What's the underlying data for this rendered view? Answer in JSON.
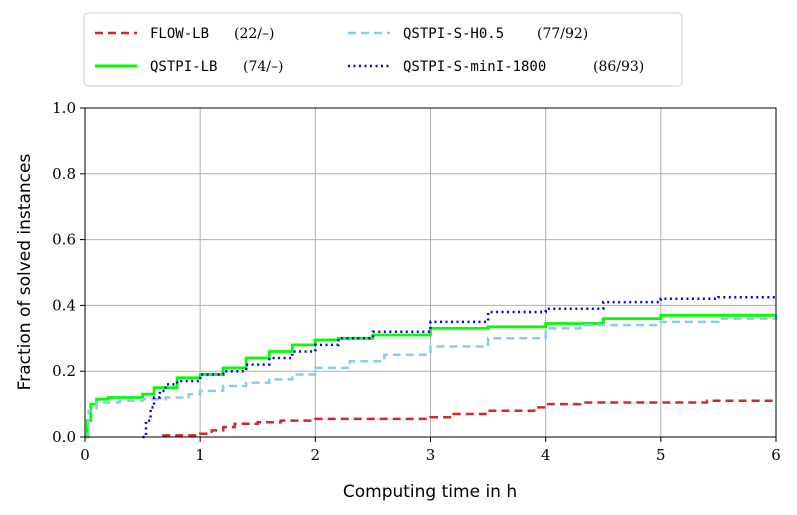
{
  "chart_data": {
    "type": "line",
    "xlabel": "Computing time in h",
    "ylabel": "Fraction of solved instances",
    "xlim": [
      0,
      6
    ],
    "ylim": [
      0,
      1.0
    ],
    "xticks": [
      "0",
      "1",
      "2",
      "3",
      "4",
      "5",
      "6"
    ],
    "yticks": [
      "0.0",
      "0.2",
      "0.4",
      "0.6",
      "0.8",
      "1.0"
    ],
    "grid": true,
    "legend_position": "top, outside the plot (2 columns)",
    "series": [
      {
        "name": "FLOW-LB",
        "count": "(22/–)",
        "color": "#d62728",
        "style": "dashed",
        "x": [
          0.67,
          1.0,
          1.1,
          1.2,
          1.3,
          1.5,
          1.7,
          2.0,
          2.4,
          2.8,
          3.0,
          3.2,
          3.5,
          3.9,
          4.0,
          4.3,
          5.0,
          5.4,
          6.0
        ],
        "y": [
          0.005,
          0.01,
          0.02,
          0.03,
          0.04,
          0.045,
          0.05,
          0.055,
          0.055,
          0.055,
          0.06,
          0.07,
          0.08,
          0.09,
          0.1,
          0.105,
          0.105,
          0.11,
          0.11
        ]
      },
      {
        "name": "QSTPI-LB",
        "count": "(74/–)",
        "color": "#00ff00",
        "style": "solid",
        "x": [
          0.0,
          0.02,
          0.05,
          0.1,
          0.2,
          0.4,
          0.5,
          0.6,
          0.8,
          1.0,
          1.2,
          1.4,
          1.6,
          1.8,
          2.0,
          2.2,
          2.5,
          3.0,
          3.5,
          4.0,
          4.5,
          5.0,
          6.0
        ],
        "y": [
          0.0,
          0.05,
          0.1,
          0.115,
          0.12,
          0.12,
          0.13,
          0.15,
          0.18,
          0.19,
          0.21,
          0.24,
          0.26,
          0.28,
          0.295,
          0.3,
          0.31,
          0.33,
          0.335,
          0.345,
          0.36,
          0.37,
          0.37
        ]
      },
      {
        "name": "QSTPI-S-H0.5",
        "count": "(77/92)",
        "color": "#87ceeb",
        "style": "dashed",
        "x": [
          0.0,
          0.03,
          0.1,
          0.3,
          0.5,
          0.7,
          0.9,
          1.0,
          1.2,
          1.4,
          1.6,
          1.8,
          2.0,
          2.3,
          2.6,
          3.0,
          3.5,
          4.0,
          4.3,
          5.0,
          5.5,
          6.0
        ],
        "y": [
          0.0,
          0.08,
          0.105,
          0.11,
          0.115,
          0.12,
          0.13,
          0.14,
          0.155,
          0.165,
          0.175,
          0.19,
          0.21,
          0.23,
          0.25,
          0.275,
          0.3,
          0.33,
          0.34,
          0.35,
          0.36,
          0.385
        ]
      },
      {
        "name": "QSTPI-S-minI-1800",
        "count": "(86/93)",
        "color": "#0000ee",
        "style": "dotted",
        "x": [
          0.5,
          0.53,
          0.57,
          0.6,
          0.65,
          0.7,
          0.8,
          1.0,
          1.2,
          1.4,
          1.6,
          1.8,
          2.0,
          2.2,
          2.5,
          3.0,
          3.5,
          4.0,
          4.5,
          5.0,
          5.5,
          6.0
        ],
        "y": [
          0.0,
          0.05,
          0.09,
          0.12,
          0.14,
          0.16,
          0.17,
          0.19,
          0.2,
          0.22,
          0.24,
          0.26,
          0.28,
          0.3,
          0.32,
          0.35,
          0.38,
          0.39,
          0.41,
          0.42,
          0.425,
          0.43
        ]
      }
    ]
  }
}
